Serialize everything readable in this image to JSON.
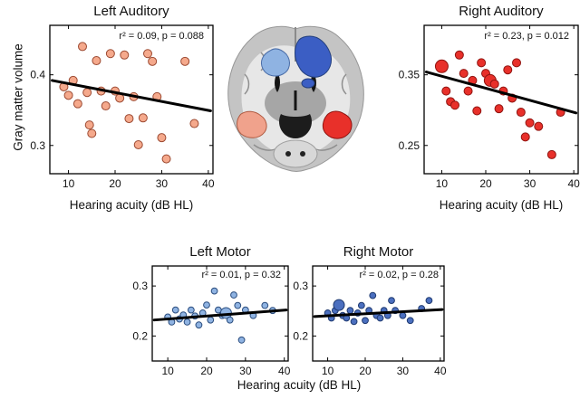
{
  "figure": {
    "y_axis_label": "Gray matter volume",
    "x_axis_label": "Hearing acuity (dB HL)"
  },
  "brain": {
    "description": "coronal brain slice with highlighted regions",
    "regions": [
      {
        "name": "left-motor",
        "color": "#8fb3e2"
      },
      {
        "name": "right-motor",
        "color": "#3b5ec4"
      },
      {
        "name": "left-auditory",
        "color": "#f0a28c"
      },
      {
        "name": "right-auditory",
        "color": "#e8302a"
      }
    ]
  },
  "chart_data": [
    {
      "type": "scatter",
      "title": "Left Auditory",
      "stat": "r² = 0.09, p = 0.088",
      "xlabel": "Hearing acuity (dB HL)",
      "ylabel": "Gray matter volume",
      "xlim": [
        6,
        41
      ],
      "ylim": [
        0.26,
        0.47
      ],
      "xticks": [
        10,
        20,
        30,
        40
      ],
      "yticks": [
        0.3,
        0.4
      ],
      "marker_color": "#f5a98c",
      "marker_edge": "#9c4a32",
      "marker_radius": 4.5,
      "points": [
        [
          9,
          0.383
        ],
        [
          10,
          0.371
        ],
        [
          11,
          0.392
        ],
        [
          12,
          0.359
        ],
        [
          13,
          0.44
        ],
        [
          14,
          0.375
        ],
        [
          14.5,
          0.329
        ],
        [
          15,
          0.317
        ],
        [
          16,
          0.42
        ],
        [
          17,
          0.377
        ],
        [
          18,
          0.356
        ],
        [
          19,
          0.43
        ],
        [
          20,
          0.377
        ],
        [
          21,
          0.367
        ],
        [
          22,
          0.428
        ],
        [
          23,
          0.338
        ],
        [
          24,
          0.369
        ],
        [
          25,
          0.301
        ],
        [
          26,
          0.339
        ],
        [
          27,
          0.43
        ],
        [
          28,
          0.419
        ],
        [
          29,
          0.369
        ],
        [
          30,
          0.311
        ],
        [
          31,
          0.281
        ],
        [
          35,
          0.419
        ],
        [
          37,
          0.331
        ]
      ],
      "fit_line": {
        "x": [
          6.5,
          40.5
        ],
        "y": [
          0.392,
          0.349
        ]
      }
    },
    {
      "type": "scatter",
      "title": "Right Auditory",
      "stat": "r² = 0.23, p = 0.012",
      "xlabel": "Hearing acuity (dB HL)",
      "ylabel": "Gray matter volume",
      "xlim": [
        6,
        41
      ],
      "ylim": [
        0.21,
        0.42
      ],
      "xticks": [
        10,
        20,
        30,
        40
      ],
      "yticks": [
        0.25,
        0.35
      ],
      "marker_color": "#e8302a",
      "marker_edge": "#8f1410",
      "marker_radius": 4.5,
      "points": [
        [
          10,
          0.362,
          7
        ],
        [
          11,
          0.327
        ],
        [
          12,
          0.312
        ],
        [
          13,
          0.307
        ],
        [
          14,
          0.378
        ],
        [
          15,
          0.352
        ],
        [
          16,
          0.327
        ],
        [
          17,
          0.342
        ],
        [
          18,
          0.299
        ],
        [
          19,
          0.367
        ],
        [
          20,
          0.352
        ],
        [
          21,
          0.342,
          6.5
        ],
        [
          22,
          0.337
        ],
        [
          23,
          0.302
        ],
        [
          24,
          0.327
        ],
        [
          25,
          0.357
        ],
        [
          26,
          0.317
        ],
        [
          27,
          0.367
        ],
        [
          28,
          0.297
        ],
        [
          29,
          0.262
        ],
        [
          30,
          0.282
        ],
        [
          32,
          0.277
        ],
        [
          35,
          0.237
        ],
        [
          37,
          0.297
        ]
      ],
      "fit_line": {
        "x": [
          6.5,
          40.5
        ],
        "y": [
          0.354,
          0.296
        ]
      }
    },
    {
      "type": "scatter",
      "title": "Left Motor",
      "stat": "r² = 0.01, p = 0.32",
      "xlabel": "Hearing acuity (dB HL)",
      "ylabel": "Gray matter volume",
      "xlim": [
        6,
        41
      ],
      "ylim": [
        0.15,
        0.34
      ],
      "xticks": [
        10,
        20,
        30,
        40
      ],
      "yticks": [
        0.2,
        0.3
      ],
      "marker_color": "#8fb3e2",
      "marker_edge": "#2b4d7e",
      "marker_radius": 3.4,
      "points": [
        [
          10,
          0.238
        ],
        [
          11,
          0.228
        ],
        [
          12,
          0.252
        ],
        [
          13,
          0.234
        ],
        [
          14,
          0.242
        ],
        [
          15,
          0.228
        ],
        [
          16,
          0.252
        ],
        [
          17,
          0.24
        ],
        [
          18,
          0.222
        ],
        [
          19,
          0.246
        ],
        [
          20,
          0.262
        ],
        [
          21,
          0.232
        ],
        [
          22,
          0.29
        ],
        [
          23,
          0.252
        ],
        [
          24,
          0.241
        ],
        [
          25,
          0.246,
          6
        ],
        [
          26,
          0.232
        ],
        [
          27,
          0.282
        ],
        [
          28,
          0.261
        ],
        [
          29,
          0.192
        ],
        [
          30,
          0.252
        ],
        [
          32,
          0.241
        ],
        [
          35,
          0.261
        ],
        [
          37,
          0.251
        ]
      ],
      "fit_line": {
        "x": [
          6.5,
          40.5
        ],
        "y": [
          0.232,
          0.252
        ]
      }
    },
    {
      "type": "scatter",
      "title": "Right Motor",
      "stat": "r² = 0.02, p = 0.28",
      "xlabel": "Hearing acuity (dB HL)",
      "ylabel": "Gray matter volume",
      "xlim": [
        6,
        41
      ],
      "ylim": [
        0.15,
        0.34
      ],
      "xticks": [
        10,
        20,
        30,
        40
      ],
      "yticks": [
        0.2,
        0.3
      ],
      "marker_color": "#4b6fbf",
      "marker_edge": "#1f3a70",
      "marker_radius": 3.4,
      "points": [
        [
          10,
          0.246
        ],
        [
          11,
          0.236
        ],
        [
          12,
          0.251
        ],
        [
          13,
          0.262,
          6
        ],
        [
          14,
          0.241
        ],
        [
          15,
          0.236
        ],
        [
          16,
          0.251
        ],
        [
          17,
          0.229
        ],
        [
          18,
          0.246
        ],
        [
          19,
          0.261
        ],
        [
          20,
          0.231
        ],
        [
          21,
          0.251
        ],
        [
          22,
          0.281
        ],
        [
          23,
          0.241
        ],
        [
          24,
          0.236
        ],
        [
          25,
          0.251
        ],
        [
          26,
          0.241
        ],
        [
          27,
          0.271
        ],
        [
          28,
          0.251
        ],
        [
          30,
          0.241
        ],
        [
          32,
          0.231
        ],
        [
          35,
          0.255
        ],
        [
          37,
          0.271
        ]
      ],
      "fit_line": {
        "x": [
          6.5,
          40.5
        ],
        "y": [
          0.239,
          0.253
        ]
      }
    }
  ]
}
